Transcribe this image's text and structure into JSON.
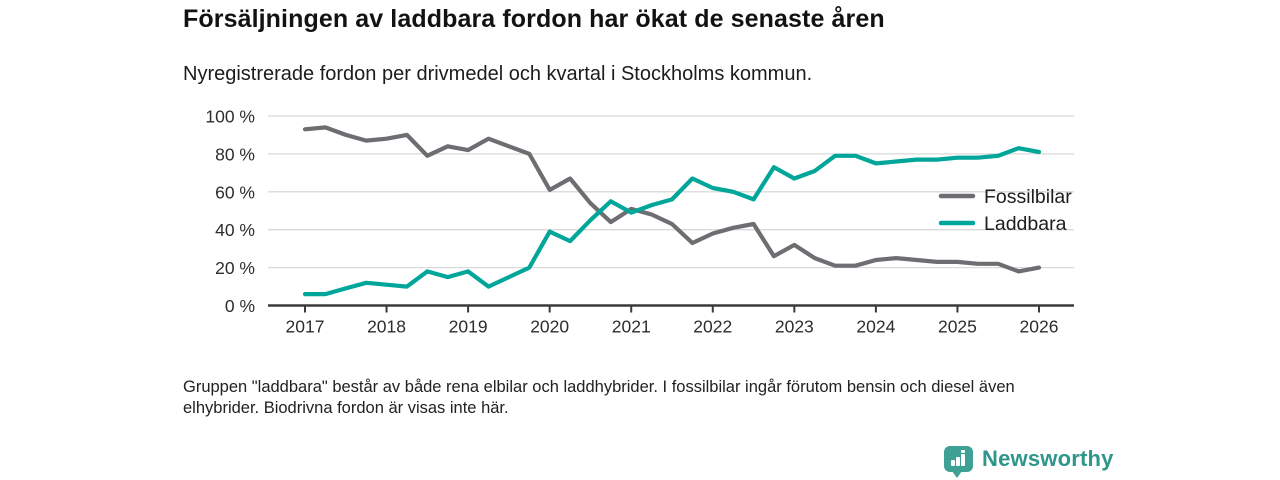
{
  "header": {
    "title": "Försäljningen av laddbara fordon har ökat de senaste åren",
    "subtitle": "Nyregistrerade fordon per drivmedel och kvartal i Stockholms kommun."
  },
  "chart_data": {
    "type": "line",
    "x_unit": "quarter",
    "categories": [
      "2017 K1",
      "2017 K2",
      "2017 K3",
      "2017 K4",
      "2018 K1",
      "2018 K2",
      "2018 K3",
      "2018 K4",
      "2019 K1",
      "2019 K2",
      "2019 K3",
      "2019 K4",
      "2020 K1",
      "2020 K2",
      "2020 K3",
      "2020 K4",
      "2021 K1",
      "2021 K2",
      "2021 K3",
      "2021 K4",
      "2022 K1",
      "2022 K2",
      "2022 K3",
      "2022 K4",
      "2023 K1",
      "2023 K2",
      "2023 K3",
      "2023 K4",
      "2024 K1",
      "2024 K2",
      "2024 K3",
      "2024 K4",
      "2025 K1",
      "2025 K2",
      "2025 K3",
      "2025 K4",
      "2026 K1"
    ],
    "series": [
      {
        "name": "Fossilbilar",
        "color": "#6d6e71",
        "values": [
          93,
          94,
          90,
          87,
          88,
          90,
          79,
          84,
          82,
          88,
          84,
          80,
          61,
          67,
          54,
          44,
          51,
          48,
          43,
          33,
          38,
          41,
          43,
          26,
          32,
          25,
          21,
          21,
          24,
          25,
          24,
          23,
          23,
          22,
          22,
          18,
          20
        ]
      },
      {
        "name": "Laddbara",
        "color": "#00a69a",
        "values": [
          6,
          6,
          9,
          12,
          11,
          10,
          18,
          15,
          18,
          10,
          15,
          20,
          39,
          34,
          45,
          55,
          49,
          53,
          56,
          67,
          62,
          60,
          56,
          73,
          67,
          71,
          79,
          79,
          75,
          76,
          77,
          77,
          78,
          78,
          79,
          83,
          81
        ]
      }
    ],
    "ylim": [
      0,
      100
    ],
    "y_ticks": [
      0,
      20,
      40,
      60,
      80,
      100
    ],
    "y_tick_labels": [
      "0 %",
      "20 %",
      "40 %",
      "60 %",
      "80 %",
      "100 %"
    ],
    "x_tick_labels": [
      "2017",
      "2018",
      "2019",
      "2020",
      "2021",
      "2022",
      "2023",
      "2024",
      "2025",
      "2026"
    ],
    "grid": true,
    "legend_position": "right-inside",
    "colors": {
      "grid": "#dadada",
      "axis": "#3b3b3b",
      "tick_text": "#2d2d2d",
      "legend_text": "#1d1d1d"
    }
  },
  "footnote": {
    "text": "Gruppen \"laddbara\" består av både rena elbilar och laddhybrider. I fossilbilar ingår förutom bensin och diesel även\nelhybrider. Biodrivna fordon är visas inte här."
  },
  "branding": {
    "logo_text": "Newsworthy",
    "logo_color": "#3fa195"
  }
}
